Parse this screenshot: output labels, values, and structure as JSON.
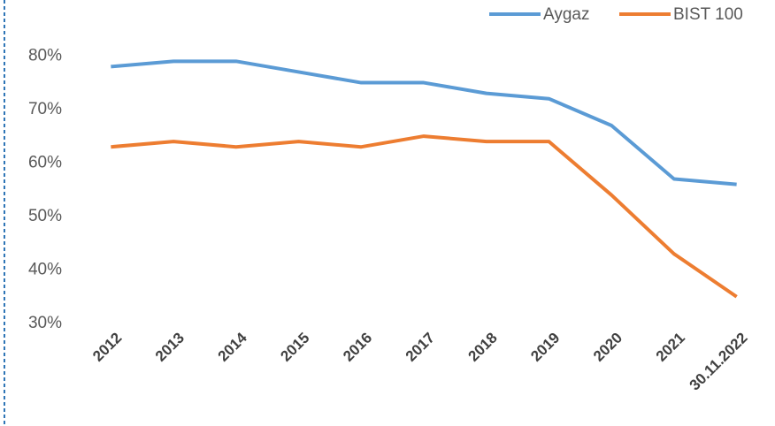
{
  "chart_data": {
    "type": "line",
    "categories": [
      "2012",
      "2013",
      "2014",
      "2015",
      "2016",
      "2017",
      "2018",
      "2019",
      "2020",
      "2021",
      "30.11.2022"
    ],
    "series": [
      {
        "name": "Aygaz",
        "color": "#5b9bd5",
        "values": [
          78,
          79,
          79,
          77,
          75,
          75,
          73,
          72,
          67,
          57,
          56
        ]
      },
      {
        "name": "BIST 100",
        "color": "#ed7d31",
        "values": [
          63,
          64,
          63,
          64,
          63,
          65,
          64,
          64,
          54,
          43,
          35
        ]
      }
    ],
    "ylim": [
      30,
      85
    ],
    "yticks": [
      {
        "value": 30,
        "label": "30%"
      },
      {
        "value": 40,
        "label": "40%"
      },
      {
        "value": 50,
        "label": "50%"
      },
      {
        "value": 60,
        "label": "60%"
      },
      {
        "value": 70,
        "label": "70%"
      },
      {
        "value": 80,
        "label": "80%"
      }
    ],
    "grid": false,
    "legend": "top-right"
  }
}
